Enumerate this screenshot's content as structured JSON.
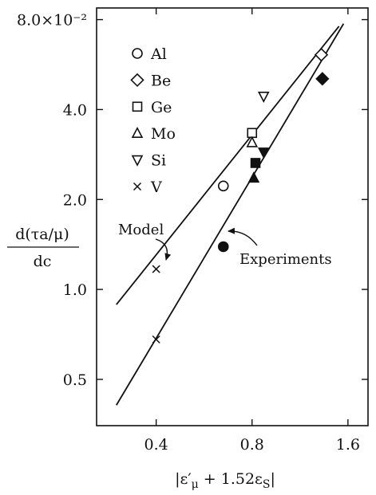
{
  "chart_data": {
    "type": "scatter",
    "title": "",
    "xlabel": "|ε′μ + 1.52εS|",
    "ylabel_numerator": "d(τa/μ)",
    "ylabel_denominator": "dc",
    "x_scale": "log2",
    "y_scale": "log2",
    "xlim": [
      0.26,
      1.85
    ],
    "ylim": [
      0.0035,
      0.0875
    ],
    "x_ticks": [
      {
        "value": 0.4,
        "label": "0.4"
      },
      {
        "value": 0.8,
        "label": "0.8"
      },
      {
        "value": 1.6,
        "label": "1.6"
      }
    ],
    "y_ticks": [
      {
        "value": 0.005,
        "label": "0.5"
      },
      {
        "value": 0.01,
        "label": "1.0"
      },
      {
        "value": 0.02,
        "label": "2.0"
      },
      {
        "value": 0.04,
        "label": "4.0"
      },
      {
        "value": 0.08,
        "label": "8.0×10⁻²"
      }
    ],
    "legend": [
      {
        "symbol": "circle",
        "label": "Al"
      },
      {
        "symbol": "diamond",
        "label": "Be"
      },
      {
        "symbol": "square",
        "label": "Ge"
      },
      {
        "symbol": "triangle-up",
        "label": "Mo"
      },
      {
        "symbol": "triangle-down",
        "label": "Si"
      },
      {
        "symbol": "cross",
        "label": "V"
      }
    ],
    "legend_position": "top-left",
    "series": [
      {
        "name": "Model",
        "fit_line": [
          [
            0.3,
            0.0089
          ],
          [
            1.5,
            0.076
          ]
        ],
        "points": [
          {
            "element": "Al",
            "symbol": "circle",
            "x": 0.65,
            "y": 0.0222
          },
          {
            "element": "Be",
            "symbol": "diamond",
            "x": 1.32,
            "y": 0.061
          },
          {
            "element": "Ge",
            "symbol": "square",
            "x": 0.8,
            "y": 0.0334
          },
          {
            "element": "Mo",
            "symbol": "triangle-up",
            "x": 0.8,
            "y": 0.031
          },
          {
            "element": "Si",
            "symbol": "triangle-down",
            "x": 0.87,
            "y": 0.0443
          },
          {
            "element": "V",
            "symbol": "cross",
            "x": 0.4,
            "y": 0.0117
          }
        ]
      },
      {
        "name": "Experiments",
        "fit_line": [
          [
            0.3,
            0.0041
          ],
          [
            1.55,
            0.0775
          ]
        ],
        "points": [
          {
            "element": "Al",
            "symbol": "circle",
            "x": 0.65,
            "y": 0.0139
          },
          {
            "element": "Be",
            "symbol": "diamond",
            "x": 1.33,
            "y": 0.0507
          },
          {
            "element": "Ge",
            "symbol": "square",
            "x": 0.82,
            "y": 0.0265
          },
          {
            "element": "Mo",
            "symbol": "triangle-up",
            "x": 0.81,
            "y": 0.0236
          },
          {
            "element": "Si",
            "symbol": "triangle-down",
            "x": 0.87,
            "y": 0.0288
          },
          {
            "element": "V",
            "symbol": "cross",
            "x": 0.4,
            "y": 0.0068
          }
        ]
      }
    ],
    "annotations": [
      {
        "label": "Model",
        "target_series": "Model"
      },
      {
        "label": "Experiments",
        "target_series": "Experiments"
      }
    ],
    "grid": false
  }
}
